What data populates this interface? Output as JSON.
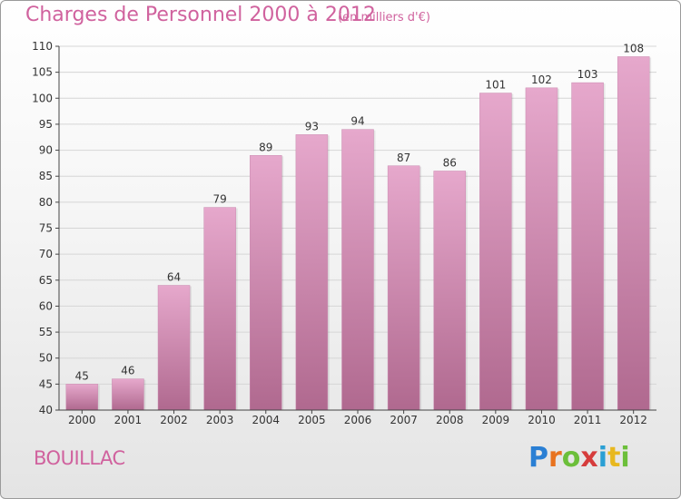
{
  "title": "Charges de Personnel 2000 à 2012",
  "subtitle": "(en milliers d'€)",
  "commune": "BOUILLAC",
  "logo": {
    "letters": [
      "P",
      "r",
      "o",
      "x",
      "i",
      "t",
      "i"
    ],
    "colors": [
      "#2a7fd4",
      "#e8731f",
      "#6cbf3a",
      "#d63c3c",
      "#2a9fd4",
      "#e8b81f",
      "#6cbf3a"
    ]
  },
  "colors": {
    "accent": "#d0629e",
    "bar_top": "#e6a8cc",
    "bar_bottom": "#b0698f",
    "grid": "#d6d6d6",
    "axis": "#444444"
  },
  "chart_data": {
    "type": "bar",
    "categories": [
      "2000",
      "2001",
      "2002",
      "2003",
      "2004",
      "2005",
      "2006",
      "2007",
      "2008",
      "2009",
      "2010",
      "2011",
      "2012"
    ],
    "values": [
      45,
      46,
      64,
      79,
      89,
      93,
      94,
      87,
      86,
      101,
      102,
      103,
      108
    ],
    "title": "Charges de Personnel 2000 à 2012",
    "xlabel": "",
    "ylabel": "",
    "ylim": [
      40,
      110
    ],
    "yticks": [
      40,
      45,
      50,
      55,
      60,
      65,
      70,
      75,
      80,
      85,
      90,
      95,
      100,
      105,
      110
    ],
    "grid": true,
    "data_labels": true
  }
}
